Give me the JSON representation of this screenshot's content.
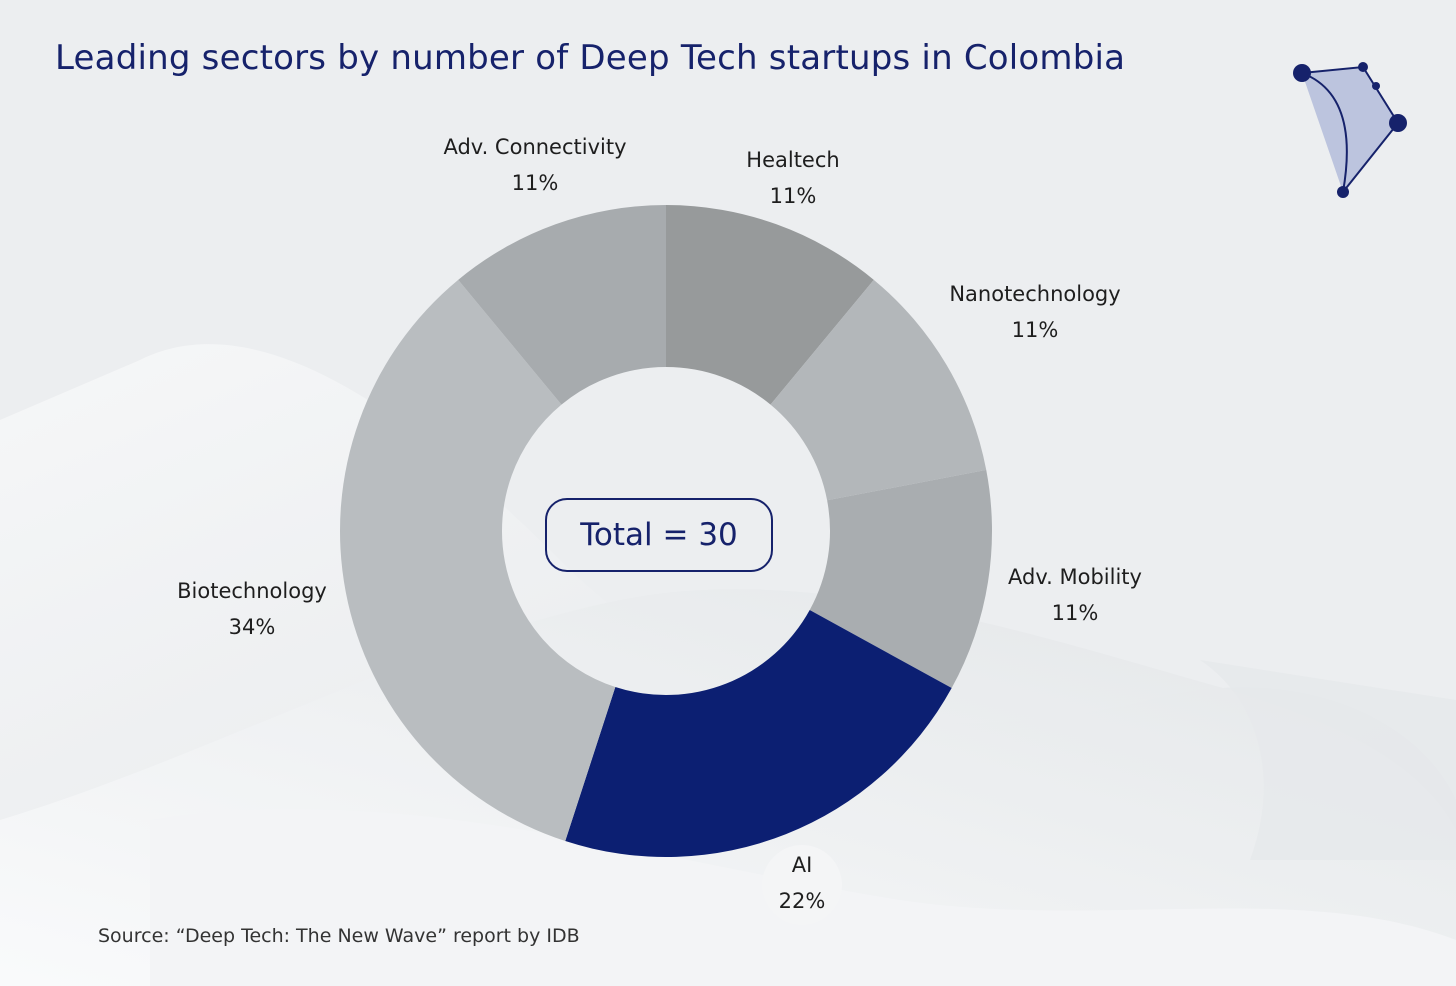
{
  "chart_data": {
    "type": "pie",
    "title": "Leading sectors by number of Deep Tech startups in Colombia",
    "categories": [
      "Healtech",
      "Nanotechnology",
      "Adv. Mobility",
      "AI",
      "Biotechnology",
      "Adv. Connectivity"
    ],
    "values": [
      11,
      11,
      11,
      22,
      34,
      11
    ],
    "value_labels": [
      "11%",
      "11%",
      "11%",
      "22%",
      "34%",
      "11%"
    ],
    "unit": "%",
    "center_label": "Total = 30",
    "highlight": "AI",
    "legend": "none"
  },
  "colors": {
    "title": "#16226b",
    "highlight": "#0c1f72",
    "slices": [
      "#979a9b",
      "#b3b7ba",
      "#a9adb0",
      "#0c1f72",
      "#b9bdc0",
      "#a7abae"
    ]
  },
  "source": "Source: “Deep Tech: The New Wave” report by IDB",
  "logo": {
    "icon": "network-constellation-icon"
  }
}
